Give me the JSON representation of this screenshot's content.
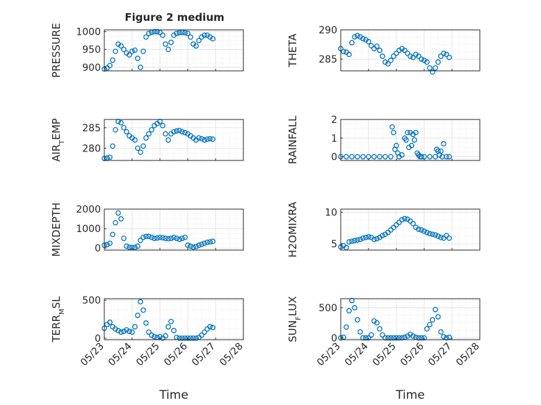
{
  "figure": {
    "title": "Figure 2 medium",
    "shared_xlabel": "Time"
  },
  "colors": {
    "series": "#0072BD",
    "axis": "#262626",
    "grid": "#d9d9d9",
    "background": "#ffffff"
  },
  "chart_data": [
    {
      "type": "scatter",
      "title": "Figure 2 medium",
      "ylabel": "PRESSURE",
      "xlabel": "",
      "ylim": [
        890,
        1005
      ],
      "yticks": [
        900,
        950,
        1000
      ],
      "x": [
        "05/23",
        "05/24",
        "05/25",
        "05/26",
        "05/27",
        "05/28"
      ],
      "grid": true,
      "series": [
        {
          "x_day": [
            23.0,
            23.1,
            23.2,
            23.3,
            23.4,
            23.5,
            23.6,
            23.7,
            23.8,
            23.9,
            24.0,
            24.1,
            24.2,
            24.3,
            24.4,
            24.5,
            24.6,
            24.7,
            24.8,
            24.9,
            25.0,
            25.1,
            25.2,
            25.3,
            25.4,
            25.5,
            25.6,
            25.7,
            25.8,
            25.9,
            26.0,
            26.1,
            26.2,
            26.3,
            26.4,
            26.5,
            26.6,
            26.7,
            26.8,
            26.9
          ],
          "y": [
            895,
            898,
            905,
            920,
            945,
            965,
            960,
            950,
            940,
            935,
            945,
            948,
            925,
            900,
            945,
            985,
            995,
            998,
            1000,
            1000,
            998,
            990,
            965,
            950,
            970,
            990,
            995,
            997,
            998,
            997,
            995,
            985,
            965,
            960,
            975,
            985,
            990,
            990,
            985,
            980
          ]
        }
      ]
    },
    {
      "type": "scatter",
      "title": "",
      "ylabel": "THETA",
      "xlabel": "",
      "ylim": [
        283,
        290
      ],
      "yticks": [
        285,
        290
      ],
      "x": [
        "05/23",
        "05/24",
        "05/25",
        "05/26",
        "05/27",
        "05/28"
      ],
      "grid": true,
      "series": [
        {
          "x_day": [
            23.0,
            23.1,
            23.2,
            23.3,
            23.4,
            23.5,
            23.6,
            23.7,
            23.8,
            23.9,
            24.0,
            24.1,
            24.2,
            24.3,
            24.4,
            24.5,
            24.6,
            24.7,
            24.8,
            24.9,
            25.0,
            25.1,
            25.2,
            25.3,
            25.4,
            25.5,
            25.6,
            25.7,
            25.8,
            25.9,
            26.0,
            26.1,
            26.2,
            26.3,
            26.4,
            26.5,
            26.6,
            26.7,
            26.8,
            26.9
          ],
          "y": [
            286.8,
            286.3,
            286.2,
            285.8,
            287.8,
            288.8,
            289.0,
            288.8,
            288.5,
            288.3,
            288.0,
            287.3,
            286.8,
            287.2,
            286.5,
            285.5,
            284.5,
            284.2,
            284.8,
            285.5,
            286.0,
            286.5,
            286.8,
            286.5,
            286.0,
            285.5,
            285.3,
            285.8,
            285.5,
            285.0,
            284.8,
            284.5,
            283.5,
            282.8,
            283.5,
            284.5,
            285.5,
            286.0,
            285.8,
            285.3
          ]
        }
      ]
    },
    {
      "type": "scatter",
      "title": "",
      "ylabel": "AIR_TEMP",
      "xlabel": "",
      "ylim": [
        277,
        287
      ],
      "yticks": [
        280,
        285
      ],
      "x": [
        "05/23",
        "05/24",
        "05/25",
        "05/26",
        "05/27",
        "05/28"
      ],
      "grid": true,
      "series": [
        {
          "x_day": [
            23.0,
            23.1,
            23.2,
            23.3,
            23.4,
            23.5,
            23.6,
            23.7,
            23.8,
            23.9,
            24.0,
            24.1,
            24.2,
            24.3,
            24.4,
            24.5,
            24.6,
            24.7,
            24.8,
            24.9,
            25.0,
            25.1,
            25.2,
            25.3,
            25.4,
            25.5,
            25.6,
            25.7,
            25.8,
            25.9,
            26.0,
            26.1,
            26.2,
            26.3,
            26.4,
            26.5,
            26.6,
            26.7,
            26.8,
            26.9
          ],
          "y": [
            277.5,
            277.6,
            277.8,
            280.5,
            284.5,
            286.5,
            286.2,
            285.0,
            284.0,
            283.0,
            282.5,
            282.0,
            280.0,
            279.0,
            280.5,
            282.5,
            283.5,
            284.5,
            285.5,
            286.0,
            286.5,
            285.5,
            283.5,
            282.0,
            283.5,
            284.0,
            284.2,
            284.3,
            284.0,
            283.8,
            283.5,
            283.0,
            282.5,
            282.0,
            282.5,
            282.3,
            282.0,
            282.2,
            282.3,
            282.2
          ]
        }
      ]
    },
    {
      "type": "scatter",
      "title": "",
      "ylabel": "RAINFALL",
      "xlabel": "",
      "ylim": [
        -0.2,
        2
      ],
      "yticks": [
        0,
        1,
        2
      ],
      "x": [
        "05/23",
        "05/24",
        "05/25",
        "05/26",
        "05/27",
        "05/28"
      ],
      "grid": true,
      "series": [
        {
          "x_day": [
            23.0,
            23.2,
            23.4,
            23.6,
            23.8,
            24.0,
            24.2,
            24.4,
            24.6,
            24.8,
            24.85,
            24.9,
            24.95,
            25.0,
            25.05,
            25.1,
            25.2,
            25.3,
            25.35,
            25.4,
            25.45,
            25.5,
            25.55,
            25.6,
            25.65,
            25.7,
            25.75,
            25.8,
            25.85,
            25.9,
            26.0,
            26.2,
            26.4,
            26.45,
            26.5,
            26.55,
            26.6,
            26.65,
            26.7,
            26.8,
            26.9
          ],
          "y": [
            0,
            0,
            0,
            0,
            0,
            0,
            0,
            0,
            0,
            0,
            1.6,
            1.3,
            0.4,
            0.6,
            0.2,
            0,
            0.1,
            1.0,
            0.9,
            1.3,
            0.5,
            1.3,
            0.6,
            1.2,
            0.9,
            1.3,
            0.2,
            0.1,
            0,
            0,
            0,
            0,
            0,
            0.4,
            0.3,
            0.1,
            0.3,
            0,
            0.7,
            0,
            0
          ]
        }
      ]
    },
    {
      "type": "scatter",
      "title": "",
      "ylabel": "MIXDEPTH",
      "xlabel": "",
      "ylim": [
        -100,
        2000
      ],
      "yticks": [
        0,
        1000,
        2000
      ],
      "x": [
        "05/23",
        "05/24",
        "05/25",
        "05/26",
        "05/27",
        "05/28"
      ],
      "grid": true,
      "series": [
        {
          "x_day": [
            23.0,
            23.1,
            23.2,
            23.3,
            23.4,
            23.5,
            23.6,
            23.7,
            23.8,
            23.9,
            24.0,
            24.1,
            24.2,
            24.3,
            24.4,
            24.5,
            24.6,
            24.7,
            24.8,
            24.9,
            25.0,
            25.1,
            25.2,
            25.3,
            25.4,
            25.5,
            25.6,
            25.7,
            25.8,
            25.9,
            26.0,
            26.1,
            26.2,
            26.3,
            26.4,
            26.5,
            26.6,
            26.7,
            26.8,
            26.9
          ],
          "y": [
            150,
            180,
            250,
            700,
            1300,
            1800,
            1500,
            500,
            100,
            50,
            30,
            40,
            100,
            400,
            550,
            600,
            600,
            550,
            500,
            520,
            550,
            530,
            500,
            480,
            500,
            550,
            500,
            450,
            500,
            550,
            150,
            100,
            50,
            80,
            150,
            200,
            250,
            300,
            320,
            350
          ]
        }
      ]
    },
    {
      "type": "scatter",
      "title": "",
      "ylabel": "H2OMIXRA",
      "xlabel": "",
      "ylim": [
        4,
        10.5
      ],
      "yticks": [
        5,
        10
      ],
      "x": [
        "05/23",
        "05/24",
        "05/25",
        "05/26",
        "05/27",
        "05/28"
      ],
      "grid": true,
      "series": [
        {
          "x_day": [
            23.0,
            23.1,
            23.2,
            23.3,
            23.4,
            23.5,
            23.6,
            23.7,
            23.8,
            23.9,
            24.0,
            24.1,
            24.2,
            24.3,
            24.4,
            24.5,
            24.6,
            24.7,
            24.8,
            24.9,
            25.0,
            25.1,
            25.2,
            25.3,
            25.4,
            25.5,
            25.6,
            25.7,
            25.8,
            25.9,
            26.0,
            26.1,
            26.2,
            26.3,
            26.4,
            26.5,
            26.6,
            26.7,
            26.8,
            26.9
          ],
          "y": [
            4.5,
            4.7,
            4.4,
            5.3,
            5.4,
            5.5,
            5.6,
            5.7,
            5.9,
            6.0,
            6.1,
            6.0,
            5.7,
            5.8,
            6.0,
            6.3,
            6.5,
            6.8,
            7.2,
            7.6,
            8.0,
            8.4,
            8.8,
            9.0,
            8.9,
            8.6,
            8.2,
            7.6,
            7.3,
            7.2,
            7.0,
            6.8,
            6.6,
            6.5,
            6.4,
            6.2,
            6.0,
            5.9,
            6.3,
            5.9
          ]
        }
      ]
    },
    {
      "type": "scatter",
      "title": "",
      "ylabel": "TERR_MSL",
      "xlabel": "Time",
      "ylim": [
        -20,
        520
      ],
      "yticks": [
        0,
        500
      ],
      "x": [
        "05/23",
        "05/24",
        "05/25",
        "05/26",
        "05/27",
        "05/28"
      ],
      "grid": true,
      "series": [
        {
          "x_day": [
            23.0,
            23.1,
            23.2,
            23.3,
            23.4,
            23.5,
            23.6,
            23.7,
            23.8,
            23.9,
            24.0,
            24.1,
            24.2,
            24.3,
            24.4,
            24.5,
            24.6,
            24.7,
            24.8,
            24.9,
            25.0,
            25.1,
            25.2,
            25.3,
            25.4,
            25.5,
            25.6,
            25.7,
            25.8,
            25.9,
            26.0,
            26.1,
            26.2,
            26.3,
            26.4,
            26.5,
            26.6,
            26.7,
            26.8,
            26.9
          ],
          "y": [
            130,
            180,
            210,
            150,
            120,
            100,
            80,
            90,
            110,
            90,
            80,
            150,
            300,
            480,
            370,
            200,
            80,
            40,
            20,
            10,
            20,
            0,
            30,
            150,
            220,
            100,
            10,
            0,
            0,
            0,
            0,
            0,
            0,
            0,
            10,
            40,
            80,
            120,
            150,
            140
          ]
        }
      ]
    },
    {
      "type": "scatter",
      "title": "",
      "ylabel": "SUN_FLUX",
      "xlabel": "Time",
      "ylim": [
        -30,
        650
      ],
      "yticks": [
        0,
        500
      ],
      "x": [
        "05/23",
        "05/24",
        "05/25",
        "05/26",
        "05/27",
        "05/28"
      ],
      "grid": true,
      "series": [
        {
          "x_day": [
            23.0,
            23.1,
            23.2,
            23.3,
            23.4,
            23.5,
            23.6,
            23.7,
            23.8,
            23.9,
            24.0,
            24.1,
            24.2,
            24.3,
            24.4,
            24.5,
            24.6,
            24.7,
            24.8,
            24.9,
            25.0,
            25.1,
            25.2,
            25.3,
            25.4,
            25.5,
            25.6,
            25.7,
            25.8,
            25.9,
            26.0,
            26.1,
            26.2,
            26.3,
            26.4,
            26.5,
            26.6,
            26.7,
            26.8,
            26.9
          ],
          "y": [
            0,
            10,
            180,
            450,
            620,
            500,
            300,
            100,
            0,
            0,
            0,
            50,
            280,
            250,
            150,
            50,
            0,
            0,
            0,
            0,
            0,
            0,
            0,
            10,
            30,
            60,
            30,
            10,
            0,
            0,
            0,
            150,
            220,
            300,
            470,
            350,
            100,
            20,
            0,
            10
          ]
        }
      ]
    }
  ]
}
